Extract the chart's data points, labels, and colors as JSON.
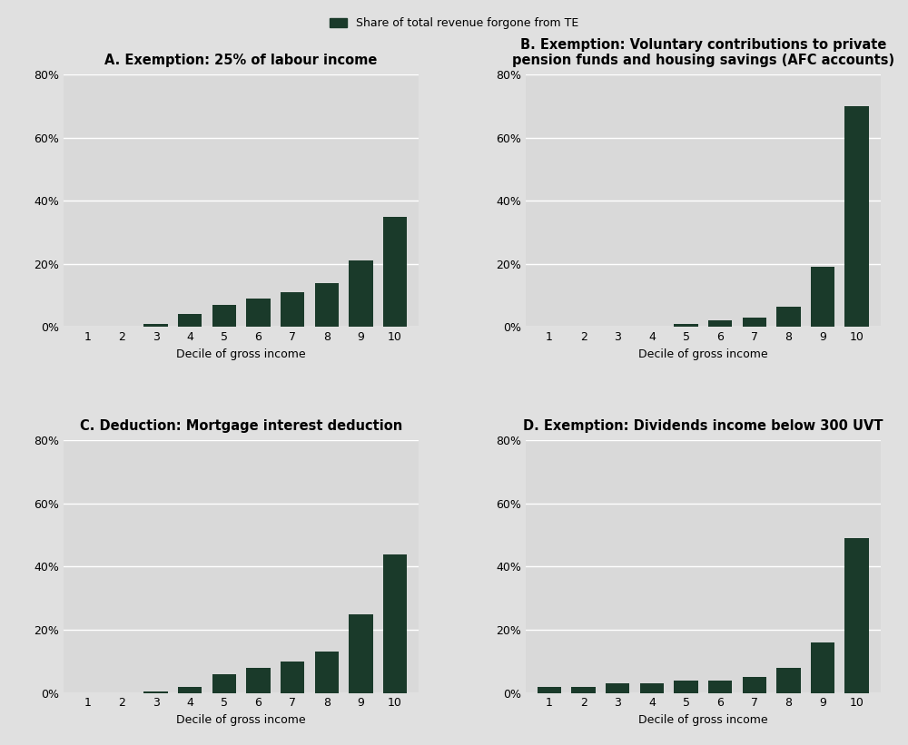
{
  "panel_A": {
    "title": "A. Exemption: 25% of labour income",
    "values": [
      0.0,
      0.0,
      0.01,
      0.04,
      0.07,
      0.09,
      0.11,
      0.14,
      0.21,
      0.35
    ]
  },
  "panel_B": {
    "title": "B. Exemption: Voluntary contributions to private\npension funds and housing savings (AFC accounts)",
    "values": [
      0.0,
      0.0,
      0.0,
      0.0,
      0.01,
      0.02,
      0.03,
      0.065,
      0.19,
      0.7
    ]
  },
  "panel_C": {
    "title": "C. Deduction: Mortgage interest deduction",
    "values": [
      0.0,
      0.0,
      0.005,
      0.02,
      0.06,
      0.08,
      0.1,
      0.13,
      0.25,
      0.44
    ]
  },
  "panel_D": {
    "title": "D. Exemption: Dividends income below 300 UVT",
    "values": [
      0.02,
      0.02,
      0.03,
      0.03,
      0.04,
      0.04,
      0.05,
      0.08,
      0.16,
      0.49
    ]
  },
  "bar_color": "#1a3a2a",
  "legend_label": "Share of total revenue forgone from TE",
  "xlabel": "Decile of gross income",
  "ylim": [
    0,
    0.8
  ],
  "yticks": [
    0.0,
    0.2,
    0.4,
    0.6,
    0.8
  ],
  "ytick_labels": [
    "0%",
    "20%",
    "40%",
    "60%",
    "80%"
  ],
  "xticks": [
    1,
    2,
    3,
    4,
    5,
    6,
    7,
    8,
    9,
    10
  ],
  "bg_color": "#d9d9d9",
  "fig_bg_color": "#e0e0e0",
  "grid_color": "#ffffff",
  "title_fontsize": 10.5,
  "tick_fontsize": 9,
  "label_fontsize": 9,
  "legend_fontsize": 9
}
